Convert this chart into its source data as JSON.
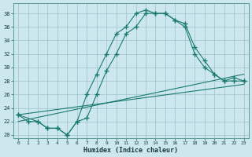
{
  "bg_color": "#cce8ee",
  "grid_color": "#9dc4cb",
  "line_color": "#1a7a6e",
  "xlim": [
    -0.5,
    23.5
  ],
  "ylim": [
    19.5,
    39.5
  ],
  "ytick_vals": [
    20,
    22,
    24,
    26,
    28,
    30,
    32,
    34,
    36,
    38
  ],
  "xtick_vals": [
    0,
    1,
    2,
    3,
    4,
    5,
    6,
    7,
    8,
    9,
    10,
    11,
    12,
    13,
    14,
    15,
    16,
    17,
    18,
    19,
    20,
    21,
    22,
    23
  ],
  "curve1_x": [
    0,
    1,
    2,
    3,
    4,
    5,
    6,
    7,
    8,
    9,
    10,
    11,
    12,
    13,
    14,
    15,
    16,
    17,
    18,
    19,
    20,
    21,
    22,
    23
  ],
  "curve1_y": [
    23,
    22,
    22,
    21,
    21,
    20,
    22,
    26,
    29,
    32,
    35,
    36,
    38,
    38.5,
    38,
    38,
    37,
    36.5,
    33,
    31,
    29,
    28,
    28.5,
    28
  ],
  "curve2_x": [
    0,
    2,
    3,
    4,
    5,
    6,
    7,
    8,
    9,
    10,
    11,
    12,
    13,
    14,
    15,
    16,
    17,
    18,
    19,
    20,
    21,
    22,
    23
  ],
  "curve2_y": [
    23,
    22,
    21,
    21,
    20,
    22,
    22.5,
    26,
    29.5,
    32,
    35,
    36,
    38,
    38,
    38,
    37,
    36,
    32,
    30,
    29,
    28,
    28,
    28
  ],
  "line1_x": [
    0,
    23
  ],
  "line1_y": [
    23,
    27.5
  ],
  "line2_x": [
    0,
    23
  ],
  "line2_y": [
    22,
    29
  ],
  "xlabel": "Humidex (Indice chaleur)"
}
